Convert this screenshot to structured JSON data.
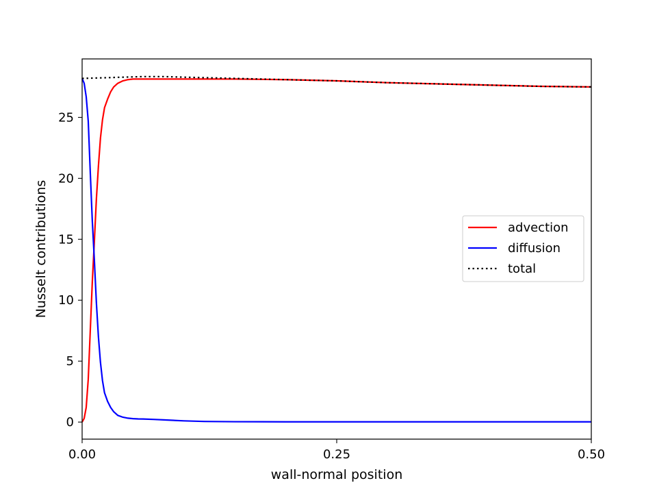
{
  "chart_data": {
    "type": "line",
    "title": "",
    "xlabel": "wall-normal position",
    "ylabel": "Nusselt contributions",
    "xlim": [
      0.0,
      0.5
    ],
    "ylim": [
      -1.4,
      29.8
    ],
    "xticks": [
      0.0,
      0.25,
      0.5
    ],
    "xtick_labels": [
      "0.00",
      "0.25",
      "0.50"
    ],
    "yticks": [
      0,
      5,
      10,
      15,
      20,
      25
    ],
    "ytick_labels": [
      "0",
      "5",
      "10",
      "15",
      "20",
      "25"
    ],
    "grid": false,
    "legend_position": "center-right",
    "series": [
      {
        "name": "advection",
        "color": "#ff0000",
        "style": "solid",
        "x": [
          0.0,
          0.002,
          0.004,
          0.006,
          0.008,
          0.01,
          0.012,
          0.014,
          0.016,
          0.018,
          0.02,
          0.022,
          0.025,
          0.028,
          0.031,
          0.035,
          0.04,
          0.045,
          0.05,
          0.055,
          0.06,
          0.07,
          0.08,
          0.1,
          0.12,
          0.15,
          0.2,
          0.25,
          0.3,
          0.35,
          0.4,
          0.45,
          0.5
        ],
        "y": [
          0.0,
          0.3,
          1.2,
          3.5,
          7.5,
          11.5,
          14.8,
          18.3,
          21.0,
          23.3,
          24.8,
          25.8,
          26.5,
          27.1,
          27.5,
          27.8,
          28.0,
          28.1,
          28.15,
          28.15,
          28.15,
          28.15,
          28.15,
          28.15,
          28.15,
          28.15,
          28.1,
          28.0,
          27.85,
          27.75,
          27.65,
          27.55,
          27.5
        ]
      },
      {
        "name": "diffusion",
        "color": "#0000ff",
        "style": "solid",
        "x": [
          0.0,
          0.002,
          0.004,
          0.006,
          0.008,
          0.01,
          0.012,
          0.014,
          0.016,
          0.018,
          0.02,
          0.022,
          0.025,
          0.028,
          0.031,
          0.035,
          0.04,
          0.045,
          0.05,
          0.055,
          0.06,
          0.07,
          0.08,
          0.1,
          0.12,
          0.15,
          0.2,
          0.25,
          0.3,
          0.35,
          0.4,
          0.45,
          0.5
        ],
        "y": [
          28.2,
          27.8,
          26.7,
          24.7,
          20.5,
          16.5,
          13.3,
          9.8,
          7.0,
          4.9,
          3.4,
          2.4,
          1.7,
          1.2,
          0.85,
          0.55,
          0.4,
          0.32,
          0.28,
          0.26,
          0.25,
          0.22,
          0.18,
          0.1,
          0.05,
          0.03,
          0.02,
          0.02,
          0.02,
          0.02,
          0.02,
          0.02,
          0.02
        ]
      },
      {
        "name": "total",
        "color": "#000000",
        "style": "dotted",
        "x": [
          0.0,
          0.02,
          0.04,
          0.06,
          0.08,
          0.1,
          0.15,
          0.2,
          0.25,
          0.3,
          0.35,
          0.4,
          0.45,
          0.5
        ],
        "y": [
          28.2,
          28.25,
          28.3,
          28.35,
          28.35,
          28.3,
          28.2,
          28.1,
          28.0,
          27.85,
          27.75,
          27.65,
          27.55,
          27.5
        ]
      }
    ]
  }
}
